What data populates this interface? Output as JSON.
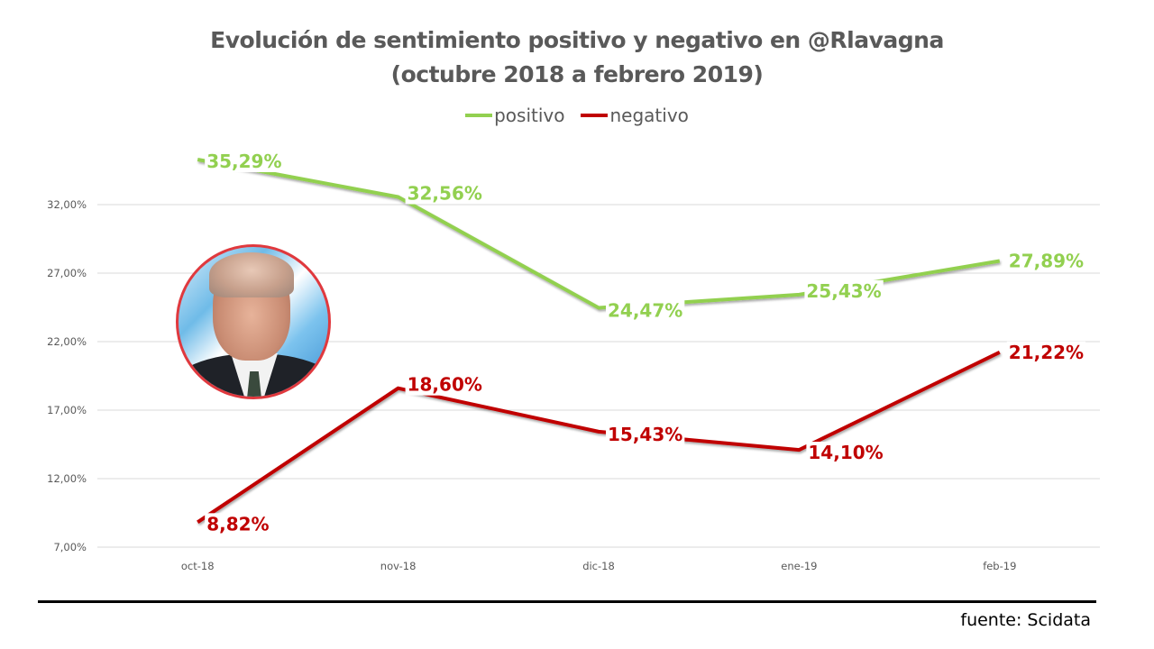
{
  "chart_data": {
    "type": "line",
    "title": "Evolución de sentimiento positivo y negativo en @Rlavagna",
    "subtitle": "(octubre 2018 a febrero 2019)",
    "xlabel": "",
    "ylabel": "",
    "categories": [
      "oct-18",
      "nov-18",
      "dic-18",
      "ene-19",
      "feb-19"
    ],
    "yticks": [
      "7,00%",
      "12,00%",
      "17,00%",
      "22,00%",
      "27,00%",
      "32,00%"
    ],
    "ytick_values": [
      7,
      12,
      17,
      22,
      27,
      32
    ],
    "ylim": [
      7,
      32
    ],
    "grid": true,
    "legend_position": "top-center",
    "series": [
      {
        "name": "positivo",
        "color": "#92d050",
        "values": [
          35.29,
          32.56,
          24.47,
          25.43,
          27.89
        ],
        "labels": [
          "35,29%",
          "32,56%",
          "24,47%",
          "25,43%",
          "27,89%"
        ]
      },
      {
        "name": "negativo",
        "color": "#c00000",
        "values": [
          8.82,
          18.6,
          15.43,
          14.1,
          21.22
        ],
        "labels": [
          "8,82%",
          "18,60%",
          "15,43%",
          "14,10%",
          "21,22%"
        ]
      }
    ]
  },
  "image": {
    "description": "portrait photo of Roberto Lavagna",
    "border_color": "#e0393e"
  },
  "source": "fuente: Scidata"
}
